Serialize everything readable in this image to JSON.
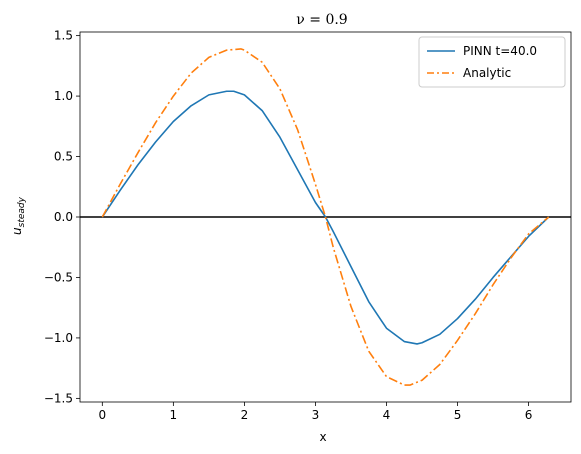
{
  "chart_data": {
    "type": "line",
    "title": "ν = 0.9",
    "xlabel": "x",
    "ylabel": "u_steady",
    "xlim": [
      -0.314,
      6.597
    ],
    "ylim": [
      -1.53,
      1.53
    ],
    "xticks": [
      0,
      1,
      2,
      3,
      4,
      5,
      6
    ],
    "yticks": [
      -1.5,
      -1.0,
      -0.5,
      0.0,
      0.5,
      1.0,
      1.5
    ],
    "xtick_labels": [
      "0",
      "1",
      "2",
      "3",
      "4",
      "5",
      "6"
    ],
    "ytick_labels": [
      "−1.5",
      "−1.0",
      "−0.5",
      "0.0",
      "0.5",
      "1.0",
      "1.5"
    ],
    "grid": false,
    "legend_position": "upper-right",
    "hline": {
      "y": 0,
      "color": "#000000"
    },
    "series": [
      {
        "name": "PINN t=40.0",
        "color": "#1f77b4",
        "style": "solid",
        "x": [
          0,
          0.25,
          0.5,
          0.75,
          1.0,
          1.25,
          1.5,
          1.75,
          1.85,
          2.0,
          2.25,
          2.5,
          2.75,
          3.0,
          3.1416,
          3.25,
          3.5,
          3.75,
          4.0,
          4.25,
          4.43,
          4.5,
          4.75,
          5.0,
          5.25,
          5.5,
          5.75,
          6.0,
          6.2832
        ],
        "y": [
          0,
          0.22,
          0.43,
          0.62,
          0.79,
          0.92,
          1.01,
          1.04,
          1.04,
          1.01,
          0.88,
          0.66,
          0.39,
          0.12,
          0.0,
          -0.12,
          -0.41,
          -0.7,
          -0.92,
          -1.03,
          -1.05,
          -1.04,
          -0.97,
          -0.84,
          -0.68,
          -0.5,
          -0.33,
          -0.16,
          0.0
        ]
      },
      {
        "name": "Analytic",
        "color": "#ff7f0e",
        "style": "dashdot",
        "x": [
          0,
          0.25,
          0.5,
          0.75,
          1.0,
          1.25,
          1.5,
          1.75,
          1.95,
          2.0,
          2.25,
          2.5,
          2.75,
          3.0,
          3.1416,
          3.25,
          3.5,
          3.75,
          4.0,
          4.25,
          4.33,
          4.5,
          4.75,
          5.0,
          5.25,
          5.5,
          5.75,
          6.0,
          6.2832
        ],
        "y": [
          0,
          0.27,
          0.53,
          0.78,
          1.0,
          1.19,
          1.32,
          1.38,
          1.39,
          1.38,
          1.28,
          1.06,
          0.72,
          0.27,
          0.0,
          -0.25,
          -0.74,
          -1.11,
          -1.32,
          -1.39,
          -1.39,
          -1.35,
          -1.22,
          -1.02,
          -0.8,
          -0.56,
          -0.34,
          -0.14,
          0.0
        ]
      }
    ]
  }
}
